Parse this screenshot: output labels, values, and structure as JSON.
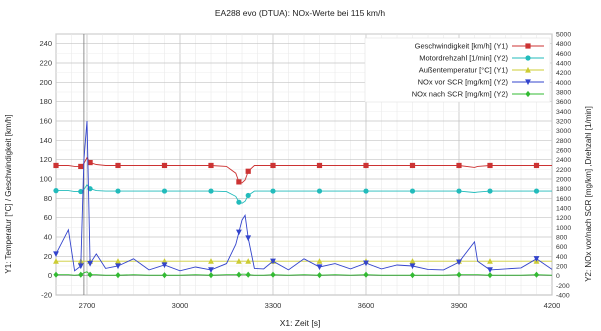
{
  "chart_data": {
    "type": "line",
    "title": "EA288 evo (DTUA): NOx-Werte bei 115 km/h",
    "xlabel": "X1: Zeit [s]",
    "ylabel_left": "Y1: Temperatur [°C] / Geschwindigkeit [km/h]",
    "ylabel_right": "Y2: NOx vor/nach SCR [mg/km] ,Drehzahl [1/min]",
    "xlim": [
      2600,
      4200
    ],
    "ylim_left": [
      -20,
      250
    ],
    "ylim_right": [
      -400,
      5000
    ],
    "x_ticks": [
      2700,
      3000,
      3300,
      3600,
      3900,
      4200
    ],
    "y_left_ticks": [
      -20,
      0,
      20,
      40,
      60,
      80,
      100,
      120,
      140,
      160,
      180,
      200,
      220,
      240
    ],
    "y_right_ticks": [
      -400,
      -200,
      0,
      200,
      400,
      600,
      800,
      1000,
      1200,
      1400,
      1600,
      1800,
      2000,
      2200,
      2400,
      2600,
      2800,
      3000,
      3200,
      3400,
      3600,
      3800,
      4000,
      4200,
      4400,
      4600,
      4800,
      5000
    ],
    "grid": true,
    "legend_position": "top-right",
    "x": [
      2600,
      2640,
      2660,
      2680,
      2690,
      2700,
      2710,
      2730,
      2760,
      2800,
      2850,
      2900,
      2950,
      3000,
      3050,
      3100,
      3150,
      3180,
      3190,
      3200,
      3210,
      3220,
      3240,
      3270,
      3300,
      3350,
      3400,
      3450,
      3500,
      3550,
      3600,
      3650,
      3700,
      3750,
      3800,
      3850,
      3900,
      3950,
      3960,
      4000,
      4050,
      4100,
      4150,
      4200
    ],
    "series": [
      {
        "name": "Geschwindigkeit [km/h] (Y1)",
        "axis": "left",
        "color": "#cc3333",
        "marker": "square",
        "values": [
          114,
          114,
          113,
          113,
          116,
          122,
          117,
          115,
          114,
          114,
          114,
          114,
          114,
          114,
          114,
          114,
          113,
          106,
          97,
          96,
          99,
          108,
          114,
          114,
          114,
          114,
          114,
          114,
          114,
          114,
          114,
          114,
          114,
          114,
          114,
          114,
          114,
          112,
          113,
          114,
          114,
          114,
          114,
          114
        ]
      },
      {
        "name": "Motordrehzahl [1/min] (Y2)",
        "axis": "right",
        "color": "#22bbbb",
        "marker": "circle",
        "values": [
          1760,
          1760,
          1740,
          1740,
          1780,
          1880,
          1800,
          1760,
          1750,
          1750,
          1750,
          1750,
          1750,
          1750,
          1750,
          1750,
          1740,
          1640,
          1520,
          1500,
          1540,
          1660,
          1750,
          1750,
          1750,
          1750,
          1750,
          1750,
          1750,
          1750,
          1750,
          1750,
          1750,
          1750,
          1750,
          1750,
          1750,
          1720,
          1730,
          1750,
          1750,
          1750,
          1750,
          1750
        ]
      },
      {
        "name": "Außentemperatur [°C] (Y1)",
        "axis": "left",
        "color": "#cccc33",
        "marker": "triangle-up",
        "values": [
          15,
          15,
          15,
          15,
          15,
          15,
          15,
          15,
          15,
          15,
          15,
          15,
          15,
          15,
          15,
          15,
          15,
          15,
          15,
          15,
          15,
          15,
          15,
          15,
          15,
          15,
          15,
          15,
          15,
          15,
          15,
          15,
          15,
          15,
          15,
          15,
          15,
          15,
          15,
          15,
          15,
          15,
          15,
          15
        ]
      },
      {
        "name": "NOx vor SCR [mg/km] (Y2)",
        "axis": "right",
        "color": "#3344cc",
        "marker": "triangle-down",
        "values": [
          450,
          950,
          100,
          200,
          2400,
          3200,
          250,
          450,
          150,
          200,
          350,
          120,
          220,
          100,
          180,
          120,
          250,
          650,
          900,
          1150,
          1250,
          780,
          150,
          140,
          300,
          120,
          350,
          180,
          250,
          140,
          260,
          140,
          220,
          200,
          130,
          120,
          280,
          700,
          300,
          120,
          140,
          160,
          350,
          130
        ]
      },
      {
        "name": "NOx nach SCR [mg/km] (Y2)",
        "axis": "right",
        "color": "#33bb33",
        "marker": "diamond",
        "values": [
          20,
          20,
          10,
          20,
          60,
          80,
          20,
          20,
          10,
          10,
          20,
          10,
          10,
          10,
          20,
          10,
          20,
          20,
          20,
          30,
          30,
          20,
          10,
          10,
          20,
          10,
          20,
          10,
          20,
          10,
          20,
          10,
          10,
          10,
          10,
          10,
          20,
          20,
          20,
          10,
          10,
          10,
          20,
          10
        ]
      }
    ]
  }
}
